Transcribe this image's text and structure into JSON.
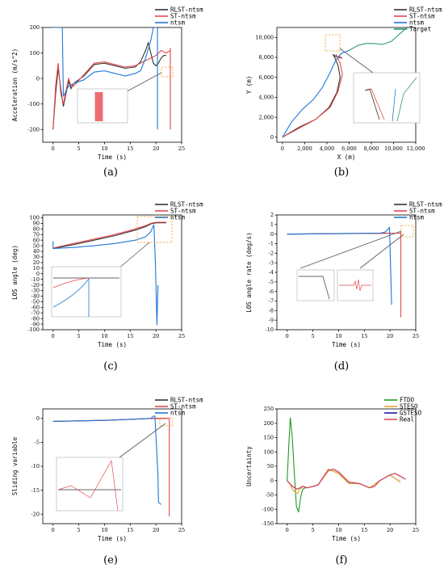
{
  "colors": {
    "rlst": "#333333",
    "st": "#e8474b",
    "ntsm": "#1e78d7",
    "target": "#2e9b68",
    "ftdo": "#1f9a1f",
    "steso": "#f0a23b",
    "gsteso": "#1a1aa8",
    "real": "#e8474b"
  },
  "chart_data": [
    {
      "type": "line",
      "caption": "(a)",
      "xlabel": "Time (s)",
      "ylabel": "Acceleration (m/s^2)",
      "xlim": [
        -2,
        25
      ],
      "ylim": [
        -250,
        200
      ],
      "xticks": [
        "0",
        "5",
        "10",
        "15",
        "20",
        "25"
      ],
      "yticks": [
        "-200",
        "-100",
        "0",
        "100",
        "200"
      ],
      "legend": [
        "RLST-ntsm",
        "ST-ntsm",
        "ntsm"
      ],
      "series": [
        {
          "name": "RLST-ntsm",
          "x": [
            0,
            0.5,
            1,
            1.5,
            2,
            2.5,
            3,
            3.5,
            4,
            6,
            8,
            10,
            12,
            14,
            16,
            17,
            18,
            18.5,
            19,
            19.5,
            20,
            20.5,
            21,
            21.5,
            22
          ],
          "y": [
            -200,
            -60,
            40,
            -40,
            -110,
            -60,
            -10,
            -40,
            -20,
            10,
            55,
            60,
            50,
            40,
            45,
            65,
            110,
            140,
            100,
            60,
            50,
            60,
            80,
            90,
            90
          ]
        },
        {
          "name": "ST-ntsm",
          "x": [
            0,
            0.5,
            1,
            1.5,
            2,
            2.5,
            3,
            3.5,
            4,
            6,
            8,
            10,
            12,
            14,
            16,
            18,
            19,
            20,
            20.5,
            21,
            22,
            22.8,
            22.8,
            22.8
          ],
          "y": [
            -200,
            -30,
            60,
            -60,
            -100,
            -50,
            0,
            -30,
            -30,
            15,
            60,
            65,
            55,
            45,
            50,
            70,
            80,
            90,
            100,
            110,
            100,
            110,
            -200,
            120
          ]
        },
        {
          "name": "ntsm",
          "x": [
            -0.3,
            0,
            1,
            1.8,
            2,
            3,
            4,
            6,
            8,
            10,
            12,
            14,
            16,
            17,
            18,
            19,
            19.5,
            20,
            20.3,
            20.3
          ],
          "y": [
            200,
            200,
            200,
            200,
            -70,
            -30,
            -20,
            -5,
            25,
            30,
            20,
            10,
            20,
            30,
            80,
            150,
            200,
            200,
            200,
            -200
          ]
        }
      ]
    },
    {
      "type": "line",
      "caption": "(b)",
      "xlabel": "X (m)",
      "ylabel": "Y (m)",
      "xlim": [
        -500,
        12000
      ],
      "ylim": [
        -500,
        11000
      ],
      "xticks": [
        "0",
        "2,000",
        "4,000",
        "6,000",
        "8,000",
        "10,000",
        "12,000"
      ],
      "yticks": [
        "0",
        "2,000",
        "4,000",
        "6,000",
        "8,000",
        "10,000"
      ],
      "legend": [
        "RLST-ntsm",
        "ST-ntsm",
        "ntsm",
        "Target"
      ],
      "series": [
        {
          "name": "RLST-ntsm",
          "x": [
            0,
            1500,
            3000,
            4200,
            4900,
            5200,
            5000,
            4700,
            4550,
            4800,
            5300
          ],
          "y": [
            0,
            1000,
            1800,
            3000,
            4500,
            6000,
            7200,
            8000,
            8300,
            8100,
            8000
          ]
        },
        {
          "name": "ST-ntsm",
          "x": [
            0,
            1500,
            3000,
            4300,
            5000,
            5400,
            5200,
            4900,
            4800,
            5000,
            5400
          ],
          "y": [
            0,
            900,
            1800,
            3000,
            4600,
            6300,
            7400,
            8100,
            8300,
            8000,
            7900
          ]
        },
        {
          "name": "ntsm",
          "x": [
            0,
            800,
            1800,
            2800,
            3600,
            4300,
            4700,
            5000,
            5300,
            6000
          ],
          "y": [
            0,
            1500,
            2800,
            3800,
            5000,
            6500,
            7500,
            8000,
            8400,
            8700
          ]
        },
        {
          "name": "Target",
          "x": [
            6000,
            6800,
            7500,
            8200,
            9000,
            9800,
            10400,
            10900,
            11300
          ],
          "y": [
            8700,
            9200,
            9400,
            9400,
            9300,
            9600,
            10200,
            10700,
            11000
          ]
        }
      ]
    },
    {
      "type": "line",
      "caption": "(c)",
      "xlabel": "Time (s)",
      "ylabel": "LOS angle (deg)",
      "xlim": [
        -2,
        25
      ],
      "ylim": [
        -100,
        105
      ],
      "xticks": [
        "0",
        "5",
        "10",
        "15",
        "20",
        "25"
      ],
      "yticks": [
        "-100",
        "-90",
        "-80",
        "-70",
        "-60",
        "-50",
        "-40",
        "-30",
        "-20",
        "-10",
        "0",
        "10",
        "20",
        "30",
        "40",
        "50",
        "60",
        "70",
        "80",
        "90",
        "100"
      ],
      "legend": [
        "RLST-ntsm",
        "ST-ntsm",
        "ntsm"
      ],
      "series": [
        {
          "name": "RLST-ntsm",
          "x": [
            0,
            4,
            8,
            12,
            16,
            18,
            19,
            20,
            22
          ],
          "y": [
            45,
            52,
            60,
            68,
            78,
            84,
            89,
            91,
            91
          ]
        },
        {
          "name": "ST-ntsm",
          "x": [
            0,
            4,
            8,
            12,
            16,
            18,
            19,
            20,
            22
          ],
          "y": [
            46,
            54,
            62,
            70,
            80,
            86,
            90,
            92,
            92
          ]
        },
        {
          "name": "ntsm",
          "x": [
            0,
            0,
            4,
            8,
            12,
            16,
            18,
            19,
            19.6,
            19.9,
            20.2,
            20.4
          ],
          "y": [
            58,
            45,
            47,
            50,
            54,
            60,
            66,
            75,
            88,
            20,
            -92,
            -20
          ]
        }
      ]
    },
    {
      "type": "line",
      "caption": "(d)",
      "xlabel": "Time (s)",
      "ylabel": "LOS angle rate (deg/s)",
      "xlim": [
        -2,
        25
      ],
      "ylim": [
        -10,
        2
      ],
      "xticks": [
        "0",
        "5",
        "10",
        "15",
        "20",
        "25"
      ],
      "yticks": [
        "-10",
        "-9",
        "-8",
        "-7",
        "-6",
        "-5",
        "-4",
        "-3",
        "-2",
        "-1",
        "0",
        "1",
        "2"
      ],
      "legend": [
        "RLST-ntsm",
        "ST-ntsm",
        "ntsm"
      ],
      "series": [
        {
          "name": "RLST-ntsm",
          "x": [
            0,
            10,
            19,
            21,
            22
          ],
          "y": [
            0,
            0.05,
            0.08,
            0.1,
            0.1
          ]
        },
        {
          "name": "ST-ntsm",
          "x": [
            0,
            10,
            19,
            21,
            22,
            22.1,
            22.1
          ],
          "y": [
            0,
            0.05,
            0.08,
            0.1,
            0.1,
            0.3,
            -8.7
          ]
        },
        {
          "name": "ntsm",
          "x": [
            0,
            10,
            18,
            19,
            19.6,
            19.9,
            20.3
          ],
          "y": [
            0,
            0.05,
            0.1,
            0.2,
            0.5,
            0.7,
            -7.4
          ]
        }
      ]
    },
    {
      "type": "line",
      "caption": "(e)",
      "xlabel": "Time (s)",
      "ylabel": "Sliding variable",
      "xlim": [
        -2,
        25
      ],
      "ylim": [
        -22,
        2
      ],
      "xticks": [
        "0",
        "5",
        "10",
        "15",
        "20",
        "25"
      ],
      "yticks": [
        "-20",
        "-15",
        "-10",
        "-5",
        "0"
      ],
      "legend": [
        "RLST-ntsm",
        "ST-ntsm",
        "ntsm"
      ],
      "series": [
        {
          "name": "RLST-ntsm",
          "x": [
            0,
            10,
            19,
            21,
            22
          ],
          "y": [
            -0.6,
            -0.4,
            0,
            0,
            0
          ]
        },
        {
          "name": "ST-ntsm",
          "x": [
            0,
            10,
            19,
            21,
            22,
            22.6,
            22.6
          ],
          "y": [
            -0.6,
            -0.4,
            0,
            0,
            0,
            0,
            -20.5
          ]
        },
        {
          "name": "ntsm",
          "x": [
            0,
            10,
            19,
            19.5,
            19.8,
            20.4,
            20.5,
            21
          ],
          "y": [
            -0.6,
            -0.4,
            0,
            0.5,
            0.5,
            -12,
            -17.5,
            -18
          ]
        }
      ]
    },
    {
      "type": "line",
      "caption": "(f)",
      "xlabel": "Time (s)",
      "ylabel": "Uncertainty",
      "xlim": [
        -2,
        25
      ],
      "ylim": [
        -150,
        250
      ],
      "xticks": [
        "0",
        "5",
        "10",
        "15",
        "20",
        "25"
      ],
      "yticks": [
        "-150",
        "-100",
        "-50",
        "0",
        "50",
        "100",
        "150",
        "200",
        "250"
      ],
      "legend": [
        "FTDO",
        "STESO",
        "GSTESO",
        "Real"
      ],
      "series": [
        {
          "name": "FTDO",
          "x": [
            0,
            0.3,
            0.6,
            1,
            1.4,
            1.8,
            2.2,
            2.6,
            3,
            3.5,
            4,
            6,
            8,
            10,
            12,
            14,
            16,
            18,
            20,
            22
          ],
          "y": [
            0,
            120,
            220,
            150,
            20,
            -90,
            -110,
            -60,
            -30,
            -25,
            -25,
            -15,
            40,
            25,
            -10,
            -10,
            -25,
            0,
            20,
            -5
          ]
        },
        {
          "name": "STESO",
          "x": [
            0,
            0.5,
            1,
            1.5,
            2,
            2.5,
            3,
            4,
            6,
            8,
            10,
            12,
            14,
            16,
            18,
            20,
            22
          ],
          "y": [
            0,
            -10,
            -30,
            -40,
            -45,
            -30,
            -20,
            -25,
            -15,
            40,
            25,
            -10,
            -10,
            -25,
            0,
            20,
            -5
          ]
        },
        {
          "name": "GSTESO",
          "x": [
            0,
            1,
            2,
            3,
            4,
            6,
            8,
            9,
            10,
            12,
            14,
            16,
            17,
            18,
            20,
            21,
            22,
            23
          ],
          "y": [
            0,
            -20,
            -30,
            -20,
            -25,
            -15,
            35,
            40,
            30,
            -5,
            -10,
            -25,
            -20,
            0,
            20,
            25,
            15,
            5
          ]
        },
        {
          "name": "Real",
          "x": [
            0,
            1,
            2,
            3,
            4,
            6,
            8,
            9,
            10,
            12,
            14,
            16,
            17,
            18,
            20,
            21,
            22,
            23
          ],
          "y": [
            0,
            -20,
            -30,
            -20,
            -25,
            -15,
            35,
            40,
            30,
            -5,
            -10,
            -25,
            -20,
            0,
            20,
            25,
            15,
            5
          ]
        }
      ]
    }
  ]
}
